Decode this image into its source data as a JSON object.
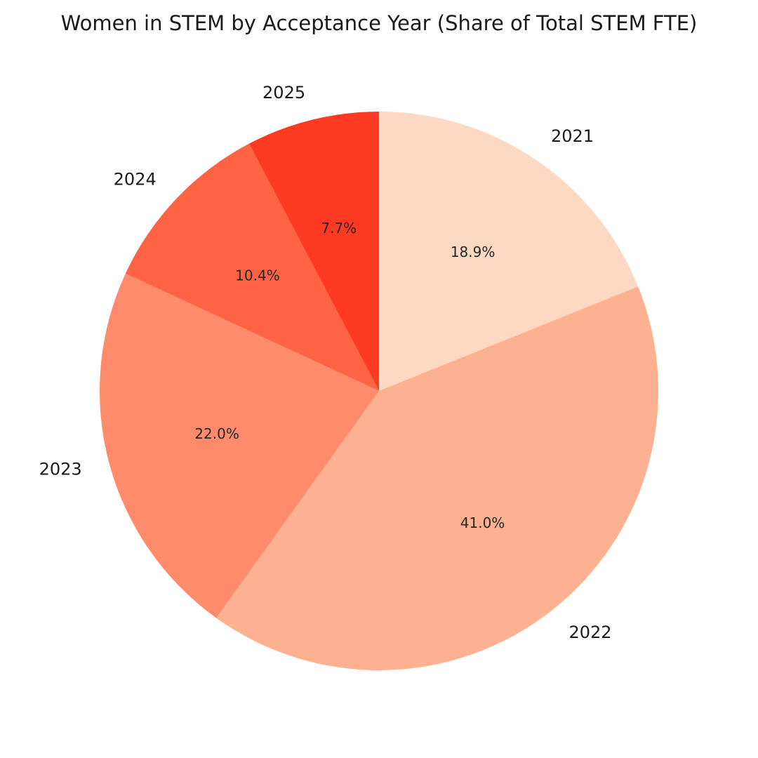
{
  "chart_data": {
    "type": "pie",
    "title": "Women in STEM by Acceptance Year (Share of Total STEM FTE)",
    "start_angle_deg": 90,
    "direction": "clockwise",
    "legend": "none",
    "slices": [
      {
        "label": "2021",
        "value": 18.9,
        "pct_label": "18.9%",
        "color": "#fdd8c2"
      },
      {
        "label": "2022",
        "value": 41.0,
        "pct_label": "41.0%",
        "color": "#fdb191"
      },
      {
        "label": "2023",
        "value": 22.0,
        "pct_label": "22.0%",
        "color": "#fe8b6b"
      },
      {
        "label": "2024",
        "value": 10.4,
        "pct_label": "10.4%",
        "color": "#fe6444"
      },
      {
        "label": "2025",
        "value": 7.7,
        "pct_label": "7.7%",
        "color": "#fe3a22"
      }
    ]
  }
}
